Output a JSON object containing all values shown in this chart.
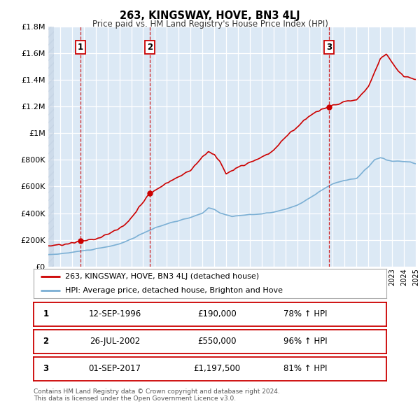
{
  "title": "263, KINGSWAY, HOVE, BN3 4LJ",
  "subtitle": "Price paid vs. HM Land Registry's House Price Index (HPI)",
  "legend_label_red": "263, KINGSWAY, HOVE, BN3 4LJ (detached house)",
  "legend_label_blue": "HPI: Average price, detached house, Brighton and Hove",
  "transactions": [
    {
      "num": 1,
      "date": "12-SEP-1996",
      "price": 190000,
      "hpi_pct": "78% ↑ HPI",
      "year": 1996.71
    },
    {
      "num": 2,
      "date": "26-JUL-2002",
      "price": 550000,
      "hpi_pct": "96% ↑ HPI",
      "year": 2002.56
    },
    {
      "num": 3,
      "date": "01-SEP-2017",
      "price": 1197500,
      "hpi_pct": "81% ↑ HPI",
      "year": 2017.67
    }
  ],
  "footnote1": "Contains HM Land Registry data © Crown copyright and database right 2024.",
  "footnote2": "This data is licensed under the Open Government Licence v3.0.",
  "xmin": 1994,
  "xmax": 2025,
  "ymin": 0,
  "ymax": 1800000,
  "yticks": [
    0,
    200000,
    400000,
    600000,
    800000,
    1000000,
    1200000,
    1400000,
    1600000,
    1800000
  ],
  "ytick_labels": [
    "£0",
    "£200K",
    "£400K",
    "£600K",
    "£800K",
    "£1M",
    "£1.2M",
    "£1.4M",
    "£1.6M",
    "£1.8M"
  ],
  "red_color": "#cc0000",
  "blue_color": "#7bafd4",
  "background_color": "#dce9f5",
  "plot_bg_color": "#dce9f5",
  "grid_color": "#ffffff",
  "vline_color": "#cc0000",
  "hatch_color": "#c0cfe0"
}
